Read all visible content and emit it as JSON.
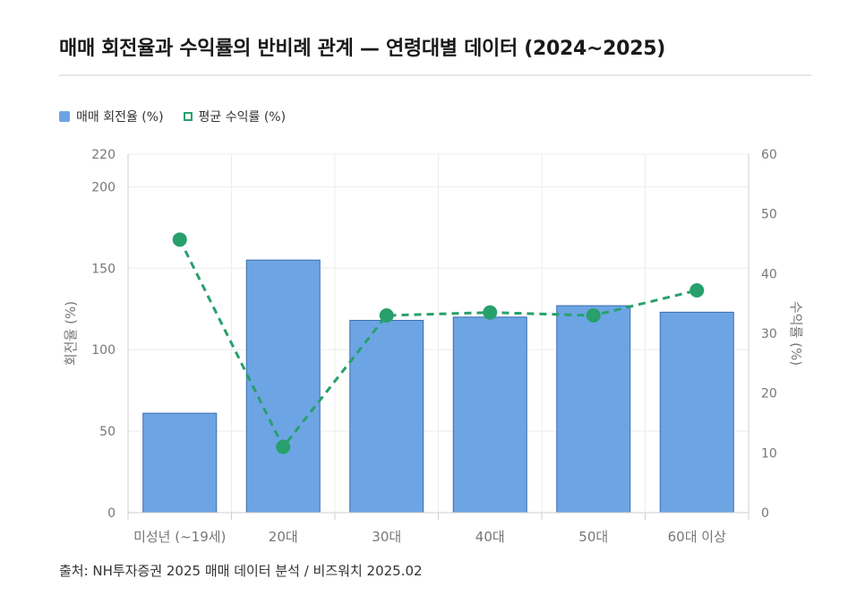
{
  "title": "매매 회전율과 수익률의 반비례 관계 — 연령대별 데이터 (2024~2025)",
  "source": "출처: NH투자증권 2025 매매 데이터 분석 / 비즈워치 2025.02",
  "colors": {
    "bar_fill": "#6da5e4",
    "bar_stroke": "#3a6db0",
    "line": "#27a06c",
    "grid": "#ececec",
    "axis_text": "#777777"
  },
  "chart_data": {
    "type": "bar",
    "categories": [
      "미성년 (~19세)",
      "20대",
      "30대",
      "40대",
      "50대",
      "60대 이상"
    ],
    "series": [
      {
        "name": "매매 회전율 (%)",
        "type": "bar",
        "axis": "left",
        "values": [
          61,
          155,
          118,
          120,
          127,
          123
        ]
      },
      {
        "name": "평균 수익률 (%)",
        "type": "line",
        "axis": "right",
        "style": "dashed",
        "values": [
          45.7,
          11,
          33,
          33.5,
          33,
          37.2
        ]
      }
    ],
    "ylabel": "회전율 (%)",
    "y2label": "수익률 (%)",
    "ylim": [
      0,
      220
    ],
    "y2lim": [
      0,
      60
    ],
    "yticks": [
      0,
      50,
      100,
      150,
      200,
      220
    ],
    "y2ticks": [
      0,
      10,
      20,
      30,
      40,
      50,
      60
    ],
    "grid": true,
    "legend_position": "top-left"
  }
}
